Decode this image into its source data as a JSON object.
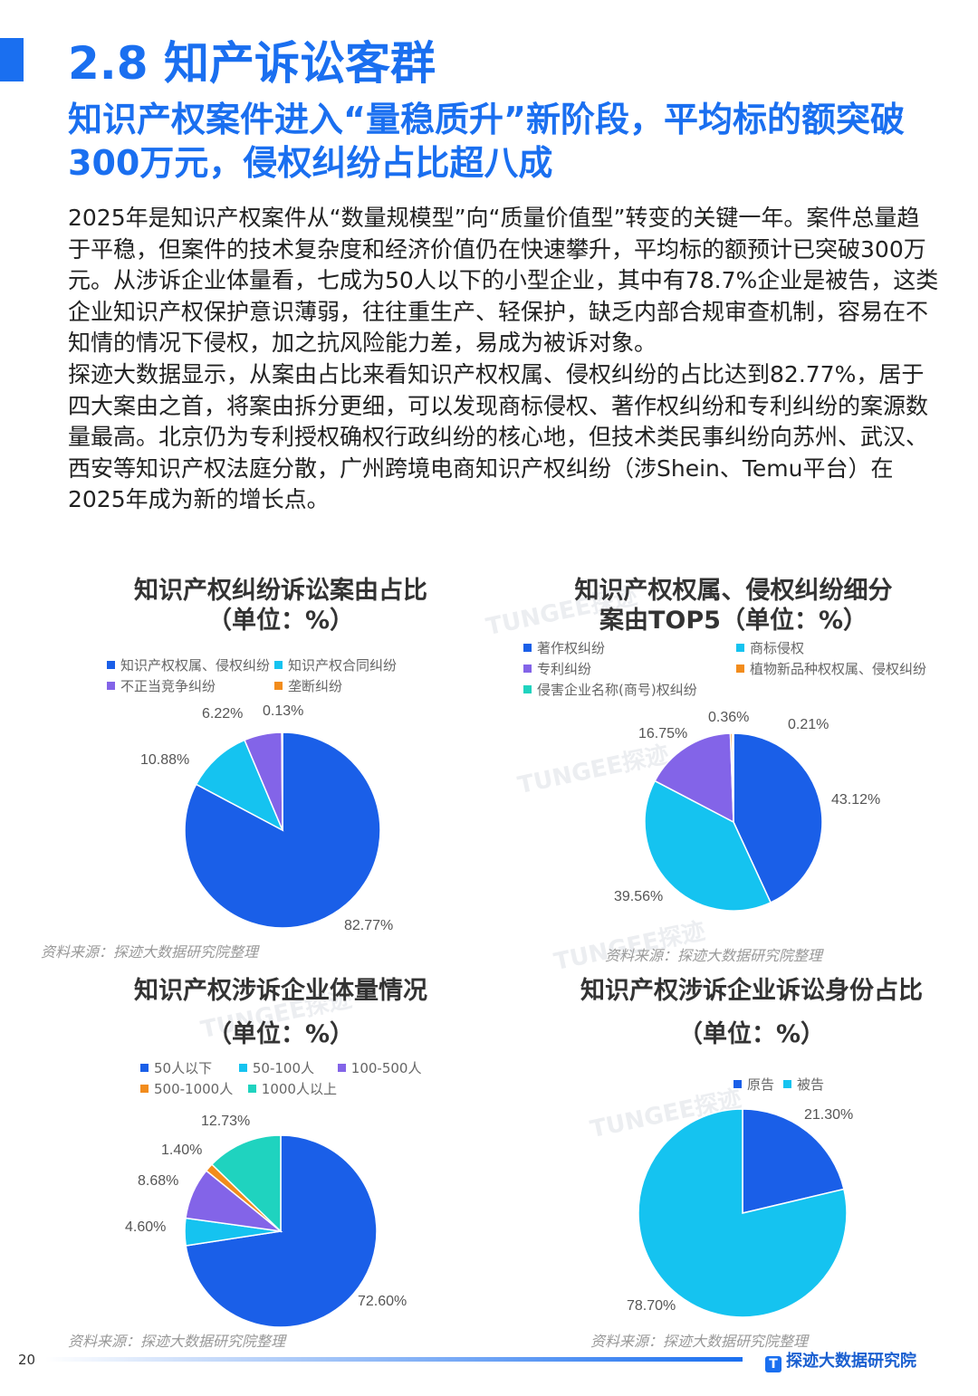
{
  "header": {
    "title": "2.8 知产诉讼客群",
    "subtitle": "知识产权案件进入“量稳质升”新阶段，平均标的额突破300万元，侵权纠纷占比超八成"
  },
  "body": {
    "paragraphs": [
      "2025年是知识产权案件从“数量规模型”向“质量价值型”转变的关键一年。案件总量趋于平稳，但案件的技术复杂度和经济价值仍在快速攀升，平均标的额预计已突破300万元。从涉诉企业体量看，七成为50人以下的小型企业，其中有78.7%企业是被告，这类企业知识产权保护意识薄弱，往往重生产、轻保护，缺乏内部合规审查机制，容易在不知情的情况下侵权，加之抗风险能力差，易成为被诉对象。",
      "探迹大数据显示，从案由占比来看知识产权权属、侵权纠纷的占比达到82.77%，居于四大案由之首，将案由拆分更细，可以发现商标侵权、著作权纠纷和专利纠纷的案源数量最高。北京仍为专利授权确权行政纠纷的核心地，但技术类民事纠纷向苏州、武汉、西安等知识产权法庭分散，广州跨境电商知识产权纠纷（涉Shein、Temu平台）在2025年成为新的增长点。"
    ]
  },
  "watermark": "TUNGEE探迹",
  "colors": {
    "blue": "#1a5fe8",
    "cyan": "#15c3f0",
    "purple": "#8364e8",
    "orange": "#f28c1c",
    "teal": "#1fd3bf",
    "accent": "#1a6ff0"
  },
  "chart_data": [
    {
      "type": "pie",
      "title": "知识产权纠纷诉讼案由占比",
      "subtitle": "（单位：%）",
      "source": "资料来源：探迹大数据研究院整理",
      "labels": [
        "知识产权权属、侵权纠纷",
        "知识产权合同纠纷",
        "不正当竞争纠纷",
        "垄断纠纷"
      ],
      "values": [
        82.77,
        10.88,
        6.22,
        0.13
      ],
      "display": [
        "82.77%",
        "10.88%",
        "6.22%",
        "0.13%"
      ],
      "colors": [
        "#1a5fe8",
        "#15c3f0",
        "#8364e8",
        "#f28c1c"
      ]
    },
    {
      "type": "pie",
      "title": "知识产权权属、侵权纠纷细分",
      "subtitle": "案由TOP5（单位：%）",
      "source": "资料来源：探迹大数据研究院整理",
      "labels": [
        "著作权纠纷",
        "商标侵权",
        "专利纠纷",
        "植物新品种权权属、侵权纠纷",
        "侵害企业名称(商号)权纠纷"
      ],
      "values": [
        43.12,
        39.56,
        16.75,
        0.36,
        0.21
      ],
      "display": [
        "43.12%",
        "39.56%",
        "16.75%",
        "0.36%",
        "0.21%"
      ],
      "colors": [
        "#1a5fe8",
        "#15c3f0",
        "#8364e8",
        "#f28c1c",
        "#1fd3bf"
      ]
    },
    {
      "type": "pie",
      "title": "知识产权涉诉企业体量情况",
      "subtitle": "（单位：%）",
      "source": "资料来源：探迹大数据研究院整理",
      "labels": [
        "50人以下",
        "50-100人",
        "100-500人",
        "500-1000人",
        "1000人以上"
      ],
      "values": [
        72.6,
        4.6,
        8.68,
        1.4,
        12.73
      ],
      "display": [
        "72.60%",
        "4.60%",
        "8.68%",
        "1.40%",
        "12.73%"
      ],
      "colors": [
        "#1a5fe8",
        "#15c3f0",
        "#8364e8",
        "#f28c1c",
        "#1fd3bf"
      ]
    },
    {
      "type": "pie",
      "title": "知识产权涉诉企业诉讼身份占比",
      "subtitle": "（单位：%）",
      "source": "资料来源：探迹大数据研究院整理",
      "labels": [
        "原告",
        "被告"
      ],
      "values": [
        21.3,
        78.7
      ],
      "display": [
        "21.30%",
        "78.70%"
      ],
      "colors": [
        "#1a5fe8",
        "#15c3f0"
      ]
    }
  ],
  "footer": {
    "page": "20",
    "logo": "探迹大数据研究院",
    "logo_mark": "T"
  }
}
